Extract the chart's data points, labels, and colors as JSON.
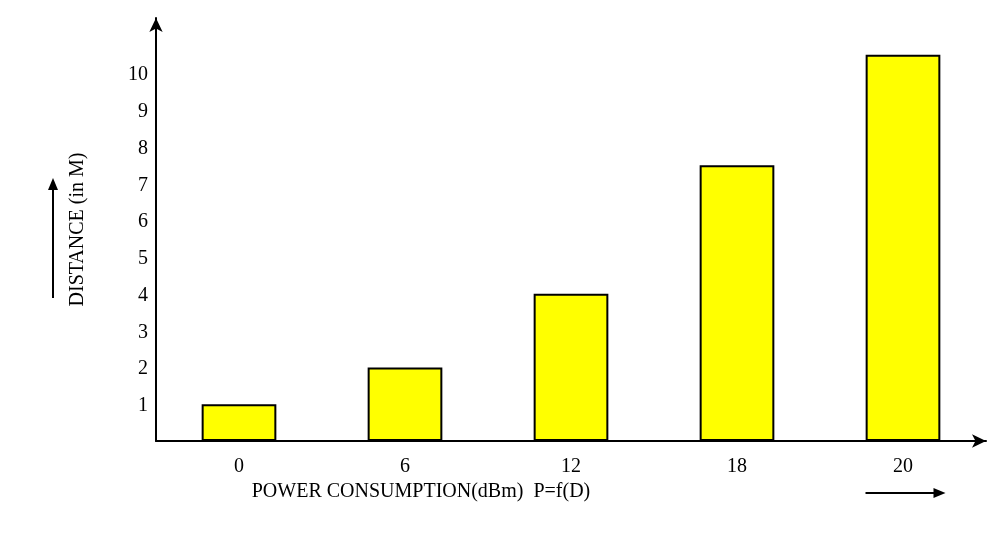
{
  "chart_data": {
    "type": "bar",
    "xlabel": "POWER CONSUMPTION(dBm)  P=f(D)",
    "ylabel": "DISTANCE (in M)",
    "categories": [
      "0",
      "6",
      "12",
      "18",
      "20"
    ],
    "values": [
      1,
      2,
      4,
      7.5,
      10.5
    ],
    "color": "#ffff00",
    "ylim": [
      0,
      11.5
    ],
    "yticks": [
      1,
      2,
      3,
      4,
      5,
      6,
      7,
      8,
      9,
      10
    ],
    "grid": false
  }
}
